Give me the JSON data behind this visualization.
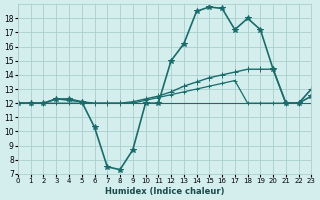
{
  "xlabel": "Humidex (Indice chaleur)",
  "bg_color": "#d4eeed",
  "grid_color": "#aacfce",
  "line_color": "#1a6b6b",
  "xlim": [
    0,
    23
  ],
  "ylim": [
    7,
    19
  ],
  "yticks": [
    7,
    8,
    9,
    10,
    11,
    12,
    13,
    14,
    15,
    16,
    17,
    18
  ],
  "xticks": [
    0,
    1,
    2,
    3,
    4,
    5,
    6,
    7,
    8,
    9,
    10,
    11,
    12,
    13,
    14,
    15,
    16,
    17,
    18,
    19,
    20,
    21,
    22,
    23
  ],
  "series": [
    {
      "x": [
        0,
        1,
        2,
        3,
        4,
        5,
        6,
        7,
        8,
        9,
        10,
        11,
        12,
        13,
        14,
        15,
        16,
        17,
        18,
        19,
        20,
        21,
        22,
        23
      ],
      "y": [
        12,
        12,
        12,
        12.3,
        12.3,
        12.1,
        10.3,
        7.5,
        7.3,
        8.7,
        12.0,
        12.0,
        15.0,
        16.2,
        18.5,
        18.8,
        18.7,
        17.2,
        18.0,
        17.2,
        14.4,
        12.0,
        12.0,
        12.5
      ],
      "marker": "*",
      "markersize": 4,
      "linewidth": 1.2
    },
    {
      "x": [
        0,
        1,
        2,
        3,
        4,
        5,
        6,
        7,
        8,
        9,
        10,
        11,
        12,
        13,
        14,
        15,
        16,
        17,
        18,
        19,
        20,
        21,
        22,
        23
      ],
      "y": [
        12,
        12,
        12,
        12.3,
        12.2,
        12.1,
        12.0,
        12.0,
        12.0,
        12.1,
        12.3,
        12.5,
        12.8,
        13.2,
        13.5,
        13.8,
        14.0,
        14.2,
        14.4,
        14.4,
        14.4,
        12.0,
        12.0,
        13.0
      ],
      "marker": "+",
      "markersize": 4,
      "linewidth": 1.0
    },
    {
      "x": [
        0,
        1,
        2,
        3,
        4,
        5,
        6,
        7,
        8,
        9,
        10,
        11,
        12,
        13,
        14,
        15,
        16,
        17,
        18,
        19,
        20,
        21,
        22,
        23
      ],
      "y": [
        12,
        12,
        12,
        12,
        12,
        12,
        12,
        12,
        12,
        12,
        12.2,
        12.4,
        12.6,
        12.8,
        13.0,
        13.2,
        13.4,
        13.6,
        12.0,
        12.0,
        12.0,
        12.0,
        12.0,
        13.0
      ],
      "marker": "+",
      "markersize": 3,
      "linewidth": 0.9
    },
    {
      "x": [
        0,
        1,
        2,
        3,
        4,
        5,
        6,
        7,
        8,
        9,
        10,
        11,
        12,
        13,
        14,
        15,
        16,
        17,
        18,
        19,
        20,
        21,
        22,
        23
      ],
      "y": [
        12,
        12,
        12,
        12,
        12,
        12,
        12,
        12,
        12,
        12,
        12,
        12,
        12,
        12,
        12,
        12,
        12,
        12,
        12,
        12,
        12,
        12,
        12,
        12
      ],
      "marker": null,
      "markersize": 0,
      "linewidth": 0.8
    }
  ]
}
